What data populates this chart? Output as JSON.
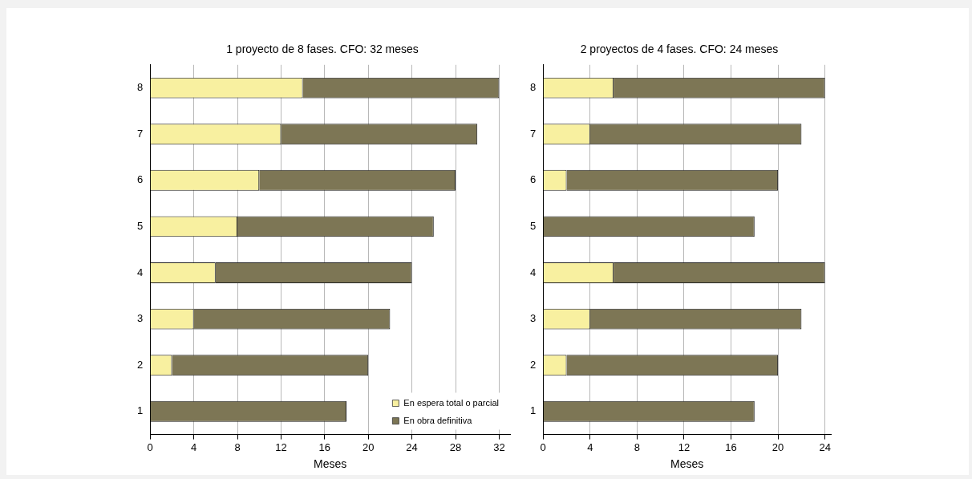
{
  "chart_data": [
    {
      "type": "bar",
      "orientation": "horizontal",
      "stacked": true,
      "title": "1 proyecto de 8 fases. CFO: 32 meses",
      "xlabel": "Meses",
      "categories": [
        "8",
        "7",
        "6",
        "5",
        "4",
        "3",
        "2",
        "1"
      ],
      "series": [
        {
          "name": "En espera total o parcial",
          "color": "#f8f0a0",
          "values": [
            14,
            12,
            10,
            8,
            6,
            4,
            2,
            0
          ]
        },
        {
          "name": "En obra definitiva",
          "color": "#7d7655",
          "values": [
            18,
            18,
            18,
            18,
            18,
            18,
            18,
            18
          ]
        }
      ],
      "xlim": [
        0,
        33
      ],
      "xticks": [
        0,
        4,
        8,
        12,
        16,
        20,
        24,
        28,
        32
      ],
      "grid": "x",
      "legend": "bottom right"
    },
    {
      "type": "bar",
      "orientation": "horizontal",
      "stacked": true,
      "title": "2 proyectos de 4 fases. CFO: 24 meses",
      "xlabel": "Meses",
      "categories": [
        "8",
        "7",
        "6",
        "5",
        "4",
        "3",
        "2",
        "1"
      ],
      "series": [
        {
          "color": "#f8f0a0",
          "values": [
            6,
            4,
            2,
            0,
            6,
            4,
            2,
            0
          ]
        },
        {
          "color": "#7d7655",
          "values": [
            18,
            18,
            18,
            18,
            18,
            18,
            18,
            18
          ]
        }
      ],
      "xlim": [
        0,
        24.5
      ],
      "xticks": [
        0,
        4,
        8,
        12,
        16,
        20,
        24
      ],
      "grid": "x"
    }
  ]
}
